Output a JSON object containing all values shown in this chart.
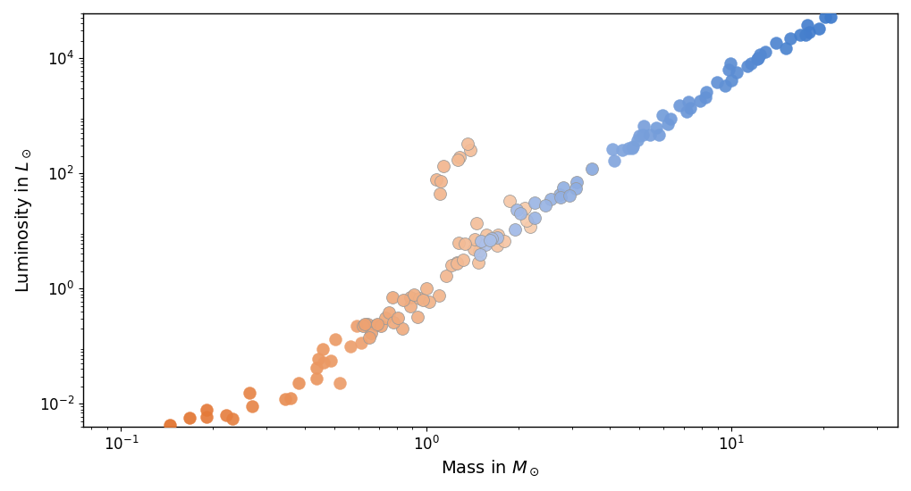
{
  "title": "",
  "xlabel": "Mass in $M_\\odot$",
  "ylabel": "Luminosity in $L_\\odot$",
  "xlim": [
    0.075,
    35
  ],
  "ylim": [
    0.004,
    60000
  ],
  "background_color": "#ffffff",
  "marker_size": 100,
  "seed": 42,
  "orange_deep": [
    0.88,
    0.43,
    0.15
  ],
  "orange_light": [
    0.97,
    0.8,
    0.68
  ],
  "blue_light": [
    0.7,
    0.77,
    0.92
  ],
  "blue_deep": [
    0.18,
    0.44,
    0.78
  ],
  "edgecolor_mid": "#888888"
}
